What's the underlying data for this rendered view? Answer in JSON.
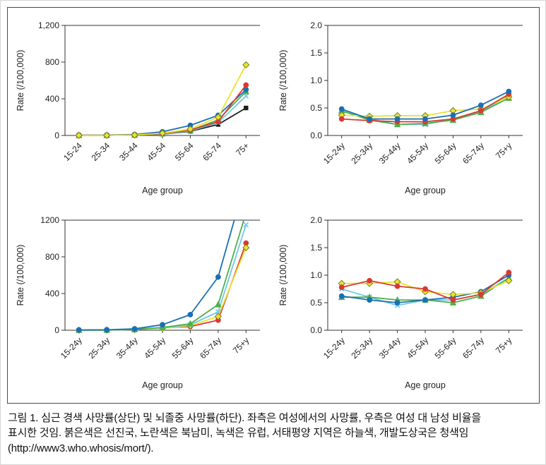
{
  "figure": {
    "caption_lines": [
      "그림 1. 심근 경색 사망률(상단) 및 뇌졸중 사망률(하단). 좌측은 여성에서의 사망률, 우측은 여성 대 남성 비율을",
      "표시한 것임. 붉은색은 선진국, 노란색은 북남미, 녹색은 유럽, 서태평양 지역은 하늘색, 개발도상국은 청색임",
      "(http://www3.who.whosis/mort/)."
    ]
  },
  "colors": {
    "developed_red": "#d93a32",
    "americas_yellow": "#e8e431",
    "americas_yellow_stroke": "#7d7d1e",
    "europe_green": "#4eb04a",
    "western_pacific_skyblue": "#72c8e8",
    "developing_blue": "#1a6fb5",
    "extra_black": "#1c1c1c",
    "axis": "#333333"
  },
  "chart_data": [
    {
      "type": "line",
      "position": "top-left",
      "title": "Myocardial infarction mortality in women",
      "ylabel": "Rate (/100,000)",
      "xlabel": "Age group",
      "ylim": [
        0,
        1200
      ],
      "yticks": [
        {
          "v": 0,
          "label": "0"
        },
        {
          "v": 400,
          "label": "400"
        },
        {
          "v": 800,
          "label": "800"
        },
        {
          "v": 1200,
          "label": "1,200"
        }
      ],
      "categories": [
        "15-24",
        "25-34",
        "35-44",
        "45-54",
        "55-64",
        "65-74",
        "75+"
      ],
      "series": [
        {
          "name": "extra-black",
          "color": "#1c1c1c",
          "marker": "square",
          "values": [
            2,
            2,
            5,
            15,
            45,
            120,
            300
          ]
        },
        {
          "name": "western-pacific-skyblue",
          "color": "#72c8e8",
          "marker": "cross",
          "values": [
            2,
            2,
            5,
            15,
            50,
            140,
            430
          ]
        },
        {
          "name": "europe-green",
          "color": "#4eb04a",
          "marker": "triangle",
          "values": [
            2,
            2,
            5,
            20,
            55,
            170,
            480
          ]
        },
        {
          "name": "developing-blue",
          "color": "#1a6fb5",
          "marker": "circle",
          "values": [
            5,
            5,
            10,
            40,
            110,
            220,
            500
          ]
        },
        {
          "name": "developed-red",
          "color": "#d93a32",
          "marker": "circle",
          "values": [
            2,
            2,
            5,
            20,
            60,
            150,
            550
          ]
        },
        {
          "name": "americas-yellow",
          "color": "#e8e431",
          "marker": "diamond",
          "mstroke": "#7d7d1e",
          "values": [
            2,
            2,
            5,
            25,
            70,
            200,
            770
          ]
        }
      ]
    },
    {
      "type": "line",
      "position": "top-right",
      "title": "Myocardial infarction female-to-male ratio",
      "ylabel": "Rate (/100,000)",
      "xlabel": "Age group",
      "ylim": [
        0,
        2.0
      ],
      "yticks": [
        {
          "v": 0,
          "label": "0.0"
        },
        {
          "v": 0.5,
          "label": "0.5"
        },
        {
          "v": 1.0,
          "label": "1.0"
        },
        {
          "v": 1.5,
          "label": "1.5"
        },
        {
          "v": 2.0,
          "label": "2.0"
        }
      ],
      "categories": [
        "15-24y",
        "25-34y",
        "35-44y",
        "45-54y",
        "55-64y",
        "65-74y",
        "75+y"
      ],
      "series": [
        {
          "name": "western-pacific-skyblue",
          "color": "#72c8e8",
          "marker": "cross",
          "values": [
            0.44,
            0.3,
            0.2,
            0.2,
            0.3,
            0.43,
            0.72
          ]
        },
        {
          "name": "europe-green",
          "color": "#4eb04a",
          "marker": "triangle",
          "values": [
            0.45,
            0.28,
            0.2,
            0.22,
            0.28,
            0.42,
            0.68
          ]
        },
        {
          "name": "americas-yellow",
          "color": "#e8e431",
          "marker": "diamond",
          "mstroke": "#7d7d1e",
          "values": [
            0.37,
            0.35,
            0.36,
            0.36,
            0.45,
            0.48,
            0.7
          ]
        },
        {
          "name": "developed-red",
          "color": "#d93a32",
          "marker": "circle",
          "values": [
            0.3,
            0.27,
            0.25,
            0.25,
            0.3,
            0.45,
            0.75
          ]
        },
        {
          "name": "developing-blue",
          "color": "#1a6fb5",
          "marker": "circle",
          "values": [
            0.48,
            0.3,
            0.3,
            0.3,
            0.37,
            0.55,
            0.8
          ]
        }
      ]
    },
    {
      "type": "line",
      "position": "bottom-left",
      "title": "Stroke mortality in women",
      "ylabel": "Rate (/100,000)",
      "xlabel": "Age group",
      "ylim": [
        0,
        1200
      ],
      "yticks": [
        {
          "v": 0,
          "label": "0"
        },
        {
          "v": 400,
          "label": "400"
        },
        {
          "v": 800,
          "label": "800"
        },
        {
          "v": 1200,
          "label": "1200"
        }
      ],
      "categories": [
        "15-24y",
        "25-34y",
        "35-44y",
        "45-54y",
        "55-64y",
        "65-74y",
        "75+y"
      ],
      "series": [
        {
          "name": "developed-red",
          "color": "#d93a32",
          "marker": "circle",
          "values": [
            1,
            2,
            8,
            25,
            40,
            110,
            950
          ]
        },
        {
          "name": "americas-yellow",
          "color": "#e8e431",
          "marker": "diamond",
          "mstroke": "#7d7d1e",
          "values": [
            1,
            2,
            8,
            20,
            50,
            150,
            900
          ]
        },
        {
          "name": "western-pacific-skyblue",
          "color": "#72c8e8",
          "marker": "cross",
          "values": [
            1,
            2,
            8,
            25,
            60,
            200,
            1150
          ]
        },
        {
          "name": "europe-green",
          "color": "#4eb04a",
          "marker": "triangle",
          "values": [
            1,
            2,
            8,
            30,
            70,
            280,
            1280
          ]
        },
        {
          "name": "developing-blue",
          "color": "#1a6fb5",
          "marker": "circle",
          "values": [
            3,
            5,
            15,
            60,
            170,
            580,
            1650
          ]
        }
      ]
    },
    {
      "type": "line",
      "position": "bottom-right",
      "title": "Stroke female-to-male ratio",
      "ylabel": "Rate (/100,000)",
      "xlabel": "Age group",
      "ylim": [
        0,
        2.0
      ],
      "yticks": [
        {
          "v": 0,
          "label": "0.0"
        },
        {
          "v": 0.5,
          "label": "0.5"
        },
        {
          "v": 1.0,
          "label": "1.0"
        },
        {
          "v": 1.5,
          "label": "1.5"
        },
        {
          "v": 2.0,
          "label": "2.0"
        }
      ],
      "categories": [
        "15-24y",
        "25-34y",
        "35-44y",
        "45-54y",
        "55-64y",
        "65-74y",
        "75+y"
      ],
      "series": [
        {
          "name": "western-pacific-skyblue",
          "color": "#72c8e8",
          "marker": "cross",
          "values": [
            0.75,
            0.6,
            0.45,
            0.55,
            0.55,
            0.65,
            0.95
          ]
        },
        {
          "name": "europe-green",
          "color": "#4eb04a",
          "marker": "triangle",
          "values": [
            0.6,
            0.6,
            0.55,
            0.55,
            0.5,
            0.62,
            0.95
          ]
        },
        {
          "name": "developing-blue",
          "color": "#1a6fb5",
          "marker": "circle",
          "values": [
            0.62,
            0.55,
            0.5,
            0.55,
            0.6,
            0.7,
            1.0
          ]
        },
        {
          "name": "americas-yellow",
          "color": "#e8e431",
          "marker": "diamond",
          "mstroke": "#7d7d1e",
          "values": [
            0.85,
            0.85,
            0.88,
            0.7,
            0.65,
            0.68,
            0.9
          ]
        },
        {
          "name": "developed-red",
          "color": "#d93a32",
          "marker": "circle",
          "values": [
            0.78,
            0.9,
            0.8,
            0.75,
            0.55,
            0.65,
            1.05
          ]
        }
      ]
    }
  ]
}
